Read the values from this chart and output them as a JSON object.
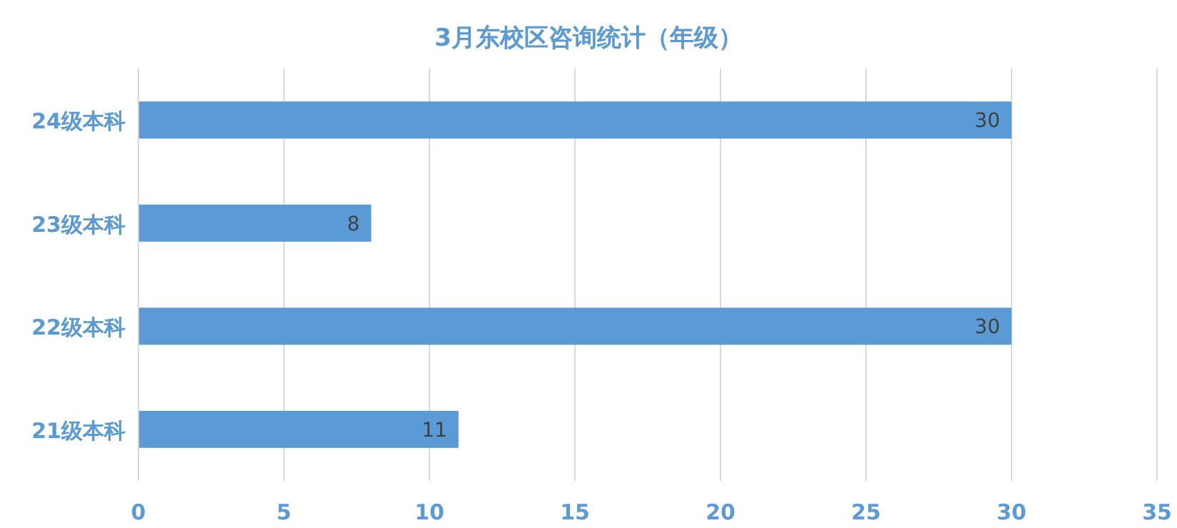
{
  "chart_data": {
    "type": "bar",
    "orientation": "horizontal",
    "title": "3月东校区咨询统计（年级）",
    "categories": [
      "24级本科",
      "23级本科",
      "22级本科",
      "21级本科"
    ],
    "values": [
      30,
      8,
      30,
      11
    ],
    "color": "#5b9bd5",
    "xlim": [
      0,
      35
    ],
    "xticks": [
      0,
      5,
      10,
      15,
      20,
      25,
      30,
      35
    ],
    "grid": "x",
    "data_labels": true
  }
}
